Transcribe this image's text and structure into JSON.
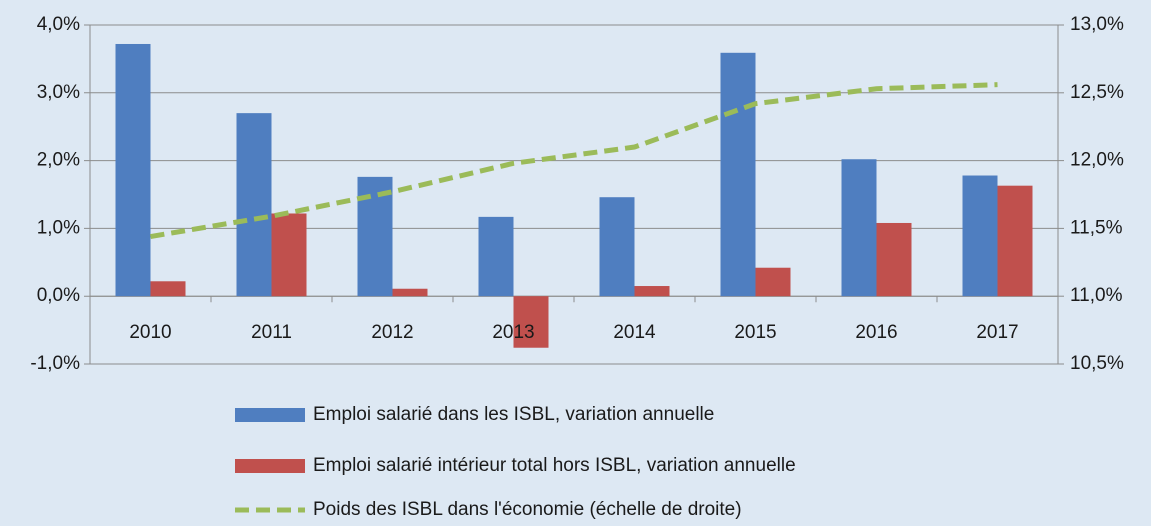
{
  "chart_data": {
    "type": "bar",
    "categories": [
      "2010",
      "2011",
      "2012",
      "2013",
      "2014",
      "2015",
      "2016",
      "2017"
    ],
    "series": [
      {
        "name": "Emploi salarié dans les ISBL, variation annuelle",
        "color": "#4f7ec0",
        "type": "bar",
        "values": [
          3.72,
          2.7,
          1.76,
          1.17,
          1.46,
          3.59,
          2.02,
          1.78
        ]
      },
      {
        "name": "Emploi salarié intérieur total hors ISBL, variation annuelle",
        "color": "#c0504d",
        "type": "bar",
        "values": [
          0.22,
          1.22,
          0.11,
          -0.76,
          0.15,
          0.42,
          1.08,
          1.63
        ]
      },
      {
        "name": "Poids des ISBL dans l'économie (échelle de droite)",
        "color": "#9bbb59",
        "type": "line",
        "axis": "y2",
        "dashed": true,
        "values": [
          11.44,
          11.59,
          11.77,
          11.98,
          12.1,
          12.42,
          12.53,
          12.56
        ]
      }
    ],
    "ylim": [
      -1,
      4
    ],
    "yticks": [
      {
        "value": -1,
        "label": "-1,0%"
      },
      {
        "value": 0,
        "label": "0,0%"
      },
      {
        "value": 1,
        "label": "1,0%"
      },
      {
        "value": 2,
        "label": "2,0%"
      },
      {
        "value": 3,
        "label": "3,0%"
      },
      {
        "value": 4,
        "label": "4,0%"
      }
    ],
    "y2lim": [
      10.5,
      13
    ],
    "y2ticks": [
      {
        "value": 10.5,
        "label": "10,5%"
      },
      {
        "value": 11,
        "label": "11,0%"
      },
      {
        "value": 11.5,
        "label": "11,5%"
      },
      {
        "value": 12,
        "label": "12,0%"
      },
      {
        "value": 12.5,
        "label": "12,5%"
      },
      {
        "value": 13,
        "label": "13,0%"
      }
    ],
    "grid": true,
    "legend": "bottom"
  }
}
